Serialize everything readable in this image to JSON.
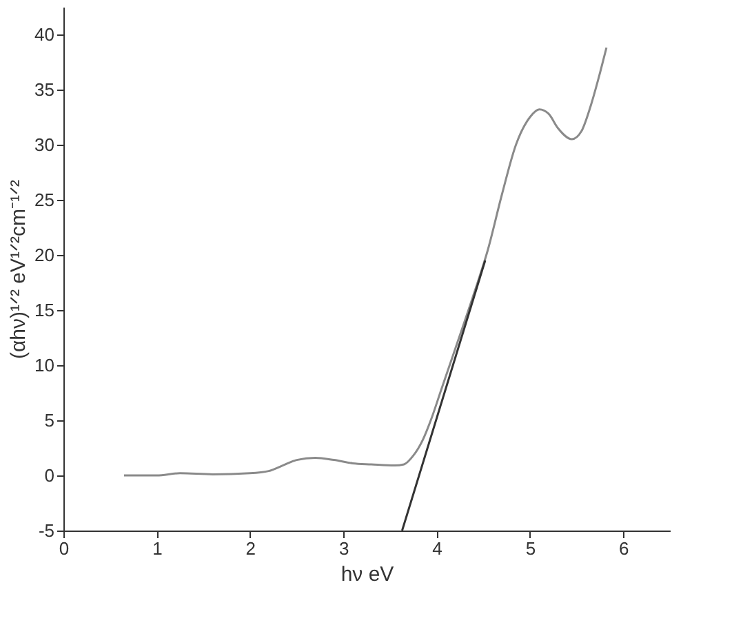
{
  "chart_data": {
    "type": "line",
    "xlabel": "hν eV",
    "ylabel": "(αhν)¹ᐟ² eV¹ᐟ²cm⁻¹ᐟ²",
    "xlim": [
      0,
      6.5
    ],
    "ylim": [
      -5,
      42.5
    ],
    "xticks": [
      0,
      1,
      2,
      3,
      4,
      5,
      6
    ],
    "yticks": [
      -5,
      0,
      5,
      10,
      15,
      20,
      25,
      30,
      35,
      40
    ],
    "grid": false,
    "marker": "none",
    "line_style": "solid",
    "series": [
      {
        "color": "#8a8a8a",
        "x": [
          0.65,
          1.0,
          1.25,
          1.6,
          2.0,
          2.2,
          2.35,
          2.5,
          2.7,
          2.9,
          3.1,
          3.3,
          3.55,
          3.65,
          3.75,
          3.85,
          3.95,
          4.05,
          4.2,
          4.4,
          4.55,
          4.7,
          4.85,
          5.0,
          5.1,
          5.2,
          5.3,
          5.45,
          5.55,
          5.65,
          5.75,
          5.82
        ],
        "values": [
          0,
          0,
          0.2,
          0.1,
          0.2,
          0.4,
          0.9,
          1.4,
          1.6,
          1.4,
          1.1,
          1.0,
          0.9,
          1.0,
          1.8,
          3.2,
          5.3,
          7.8,
          11.5,
          16.5,
          20.5,
          25.5,
          30,
          32.5,
          33.2,
          32.8,
          31.5,
          30.5,
          31.2,
          33.5,
          36.5,
          38.8
        ]
      },
      {
        "color": "#333333",
        "x": [
          3.63,
          4.52
        ],
        "values": [
          -5,
          19.5
        ]
      }
    ]
  }
}
